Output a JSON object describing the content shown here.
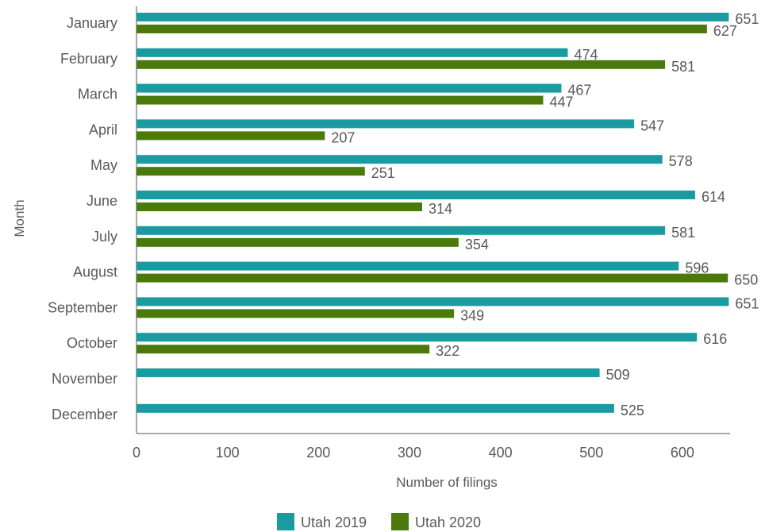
{
  "chart_data": {
    "type": "bar",
    "orientation": "horizontal",
    "title": "",
    "xlabel": "Number of filings",
    "ylabel": "Month",
    "xlim": [
      0,
      700
    ],
    "xticks": [
      "0",
      "100",
      "200",
      "300",
      "400",
      "500",
      "600"
    ],
    "categories": [
      "January",
      "February",
      "March",
      "April",
      "May",
      "June",
      "July",
      "August",
      "September",
      "October",
      "November",
      "December"
    ],
    "series": [
      {
        "name": "Utah 2019",
        "color": "#1a9ba1",
        "values": [
          651,
          474,
          467,
          547,
          578,
          614,
          581,
          596,
          651,
          616,
          509,
          525
        ]
      },
      {
        "name": "Utah 2020",
        "color": "#4a7a0c",
        "values": [
          627,
          581,
          447,
          207,
          251,
          314,
          354,
          650,
          349,
          322,
          null,
          null
        ]
      }
    ],
    "grid": false,
    "legend_position": "bottom"
  }
}
